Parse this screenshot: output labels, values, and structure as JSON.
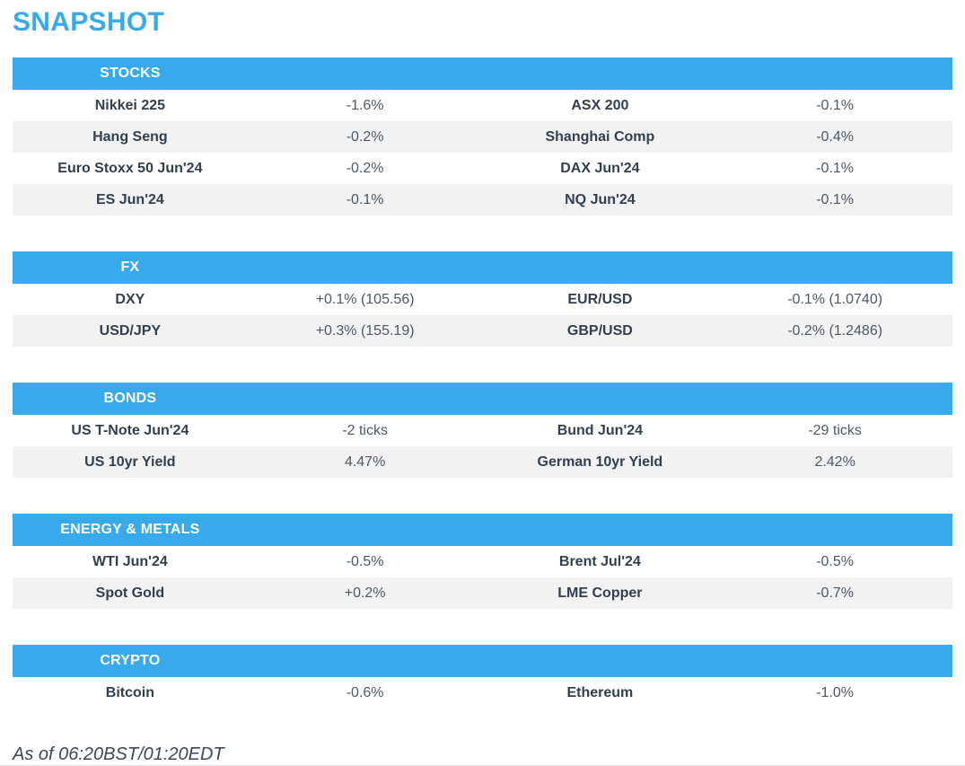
{
  "page": {
    "title": "SNAPSHOT",
    "footer": "As of 06:20BST/01:20EDT"
  },
  "colors": {
    "accent_blue": "#38a9ea",
    "header_text": "#ffffff",
    "instrument_text": "#333f4f",
    "value_text": "#4e5865",
    "row_alt_bg": "#f2f2f2"
  },
  "sections": [
    {
      "title": "STOCKS",
      "rows": [
        {
          "name1": "Nikkei 225",
          "value1": "-1.6%",
          "name2": "ASX 200",
          "value2": "-0.1%"
        },
        {
          "name1": "Hang Seng",
          "value1": "-0.2%",
          "name2": "Shanghai Comp",
          "value2": "-0.4%"
        },
        {
          "name1": "Euro Stoxx 50 Jun'24",
          "value1": "-0.2%",
          "name2": "DAX Jun'24",
          "value2": "-0.1%"
        },
        {
          "name1": "ES Jun'24",
          "value1": "-0.1%",
          "name2": "NQ Jun'24",
          "value2": "-0.1%"
        }
      ]
    },
    {
      "title": "FX",
      "rows": [
        {
          "name1": "DXY",
          "value1": "+0.1% (105.56)",
          "name2": "EUR/USD",
          "value2": "-0.1% (1.0740)"
        },
        {
          "name1": "USD/JPY",
          "value1": "+0.3% (155.19)",
          "name2": "GBP/USD",
          "value2": "-0.2% (1.2486)"
        }
      ]
    },
    {
      "title": "BONDS",
      "rows": [
        {
          "name1": "US T-Note Jun'24",
          "value1": "-2 ticks",
          "name2": "Bund Jun'24",
          "value2": "-29 ticks"
        },
        {
          "name1": "US 10yr Yield",
          "value1": "4.47%",
          "name2": "German 10yr Yield",
          "value2": "2.42%"
        }
      ]
    },
    {
      "title": "ENERGY & METALS",
      "rows": [
        {
          "name1": "WTI Jun'24",
          "value1": "-0.5%",
          "name2": "Brent Jul'24",
          "value2": "-0.5%"
        },
        {
          "name1": "Spot Gold",
          "value1": "+0.2%",
          "name2": "LME Copper",
          "value2": "-0.7%"
        }
      ]
    },
    {
      "title": "CRYPTO",
      "rows": [
        {
          "name1": "Bitcoin",
          "value1": "-0.6%",
          "name2": "Ethereum",
          "value2": "-1.0%"
        }
      ]
    }
  ]
}
